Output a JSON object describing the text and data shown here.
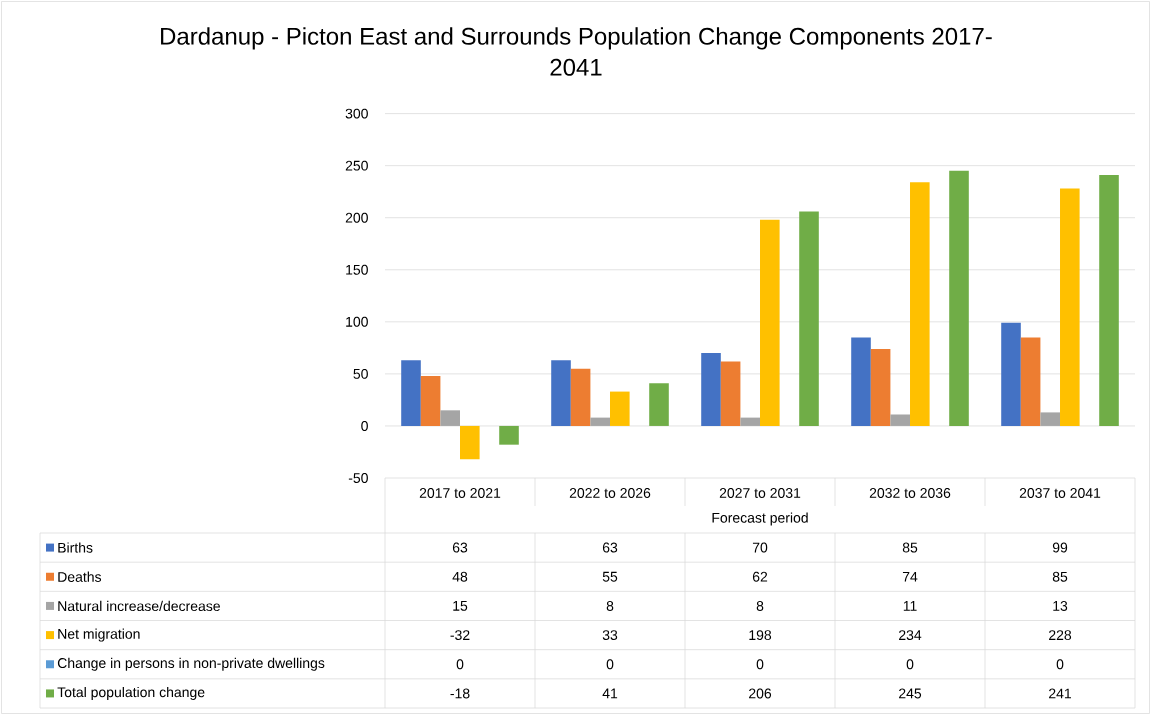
{
  "chart_data": {
    "type": "bar",
    "title": "Dardanup - Picton East and Surrounds Population Change Components 2017-2041",
    "xlabel": "Forecast period",
    "categories": [
      "2017 to 2021",
      "2022 to 2026",
      "2027 to 2031",
      "2032 to 2036",
      "2037 to 2041"
    ],
    "series": [
      {
        "name": "Births",
        "color": "#4472c4",
        "values": [
          63,
          63,
          70,
          85,
          99
        ]
      },
      {
        "name": "Deaths",
        "color": "#ed7d31",
        "values": [
          48,
          55,
          62,
          74,
          85
        ]
      },
      {
        "name": "Natural increase/decrease",
        "color": "#a5a5a5",
        "values": [
          15,
          8,
          8,
          11,
          13
        ]
      },
      {
        "name": "Net migration",
        "color": "#ffc000",
        "values": [
          -32,
          33,
          198,
          234,
          228
        ]
      },
      {
        "name": "Change in persons in non-private dwellings",
        "color": "#5b9bd5",
        "values": [
          0,
          0,
          0,
          0,
          0
        ]
      },
      {
        "name": "Total population change",
        "color": "#70ad47",
        "values": [
          -18,
          41,
          206,
          245,
          241
        ]
      }
    ],
    "ylim": [
      -50,
      300
    ],
    "yticks": [
      -50,
      0,
      50,
      100,
      150,
      200,
      250,
      300
    ],
    "grid": "y",
    "legend": "bottom",
    "data_labels": true
  }
}
